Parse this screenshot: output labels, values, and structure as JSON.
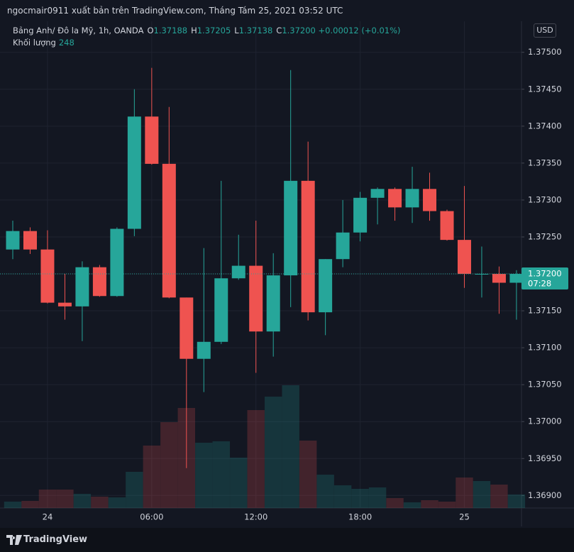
{
  "header": {
    "title": "ngocmair0911 xuất bản trên TradingView.com, Tháng Tám 25, 2021 03:52 UTC"
  },
  "legend": {
    "symbol": "Bảng Anh/ Đô la Mỹ, 1h, OANDA",
    "ohlc": [
      {
        "key": "O",
        "value": "1.37188"
      },
      {
        "key": "H",
        "value": "1.37205"
      },
      {
        "key": "L",
        "value": "1.37138"
      },
      {
        "key": "C",
        "value": "1.37200"
      }
    ],
    "change": "+0.00012 (+0.01%)",
    "volume_label": "Khối lượng",
    "volume_value": "248"
  },
  "currency_button": "USD",
  "footer": {
    "brand": "TradingView"
  },
  "chart_data": {
    "type": "candlestick",
    "categories": [
      null,
      null,
      "24",
      null,
      null,
      null,
      null,
      null,
      "06:00",
      null,
      null,
      null,
      null,
      null,
      "12:00",
      null,
      null,
      null,
      null,
      null,
      "18:00",
      null,
      null,
      null,
      null,
      null,
      "25",
      null,
      null,
      null
    ],
    "open": [
      1.37233,
      1.37258,
      1.37233,
      1.37161,
      1.37156,
      1.37209,
      1.3717,
      1.37261,
      1.37413,
      1.37349,
      1.37168,
      1.37085,
      1.37108,
      1.37194,
      1.37211,
      1.37122,
      1.37198,
      1.37326,
      1.37148,
      1.3722,
      1.37256,
      1.37303,
      1.37315,
      1.3729,
      1.37315,
      1.37285,
      1.37246,
      1.372,
      1.372,
      1.37188
    ],
    "high": [
      1.37272,
      1.37263,
      1.37259,
      1.372,
      1.37217,
      1.37212,
      1.37263,
      1.3745,
      1.37479,
      1.37426,
      1.37168,
      1.37235,
      1.37326,
      1.37253,
      1.37272,
      1.37228,
      1.37476,
      1.37379,
      1.3722,
      1.373,
      1.37311,
      1.37317,
      1.37317,
      1.37345,
      1.37337,
      1.37287,
      1.37319,
      1.37237,
      1.3721,
      1.37205
    ],
    "low": [
      1.3722,
      1.37227,
      1.3716,
      1.37138,
      1.37109,
      1.37169,
      1.37169,
      1.37251,
      1.37348,
      1.37167,
      1.36937,
      1.3704,
      1.37105,
      1.37192,
      1.37066,
      1.37088,
      1.37155,
      1.37137,
      1.37117,
      1.37209,
      1.37244,
      1.37267,
      1.37272,
      1.37269,
      1.37272,
      1.37245,
      1.37181,
      1.37168,
      1.37146,
      1.37138
    ],
    "close": [
      1.37258,
      1.37233,
      1.37161,
      1.37156,
      1.37209,
      1.3717,
      1.37261,
      1.37413,
      1.37349,
      1.37168,
      1.37085,
      1.37108,
      1.37194,
      1.37211,
      1.37122,
      1.37198,
      1.37326,
      1.37148,
      1.3722,
      1.37256,
      1.37303,
      1.37315,
      1.3729,
      1.37315,
      1.37285,
      1.37246,
      1.372,
      1.372,
      1.37188,
      1.372
    ],
    "volume": [
      117,
      130,
      338,
      338,
      260,
      208,
      195,
      663,
      1144,
      1573,
      1833,
      1196,
      1222,
      923,
      1794,
      2041,
      2249,
      1235,
      611,
      416,
      351,
      377,
      182,
      104,
      143,
      117,
      559,
      494,
      429,
      248
    ],
    "up_color": "#26a69a",
    "down_color": "#ef5350",
    "ylim": [
      1.36883,
      1.37542
    ],
    "yticks": [
      {
        "value": 1.369,
        "label": "1.36900"
      },
      {
        "value": 1.3695,
        "label": "1.36950"
      },
      {
        "value": 1.37,
        "label": "1.37000"
      },
      {
        "value": 1.3705,
        "label": "1.37050"
      },
      {
        "value": 1.371,
        "label": "1.37100"
      },
      {
        "value": 1.3715,
        "label": "1.37150"
      },
      {
        "value": 1.372,
        "label": "1.37200"
      },
      {
        "value": 1.3725,
        "label": "1.37250"
      },
      {
        "value": 1.373,
        "label": "1.37300"
      },
      {
        "value": 1.3735,
        "label": "1.37350"
      },
      {
        "value": 1.374,
        "label": "1.37400"
      },
      {
        "value": 1.3745,
        "label": "1.37450"
      },
      {
        "value": 1.375,
        "label": "1.37500"
      }
    ],
    "last_price_label": "1.37200",
    "countdown": "07:28",
    "grid": true
  }
}
